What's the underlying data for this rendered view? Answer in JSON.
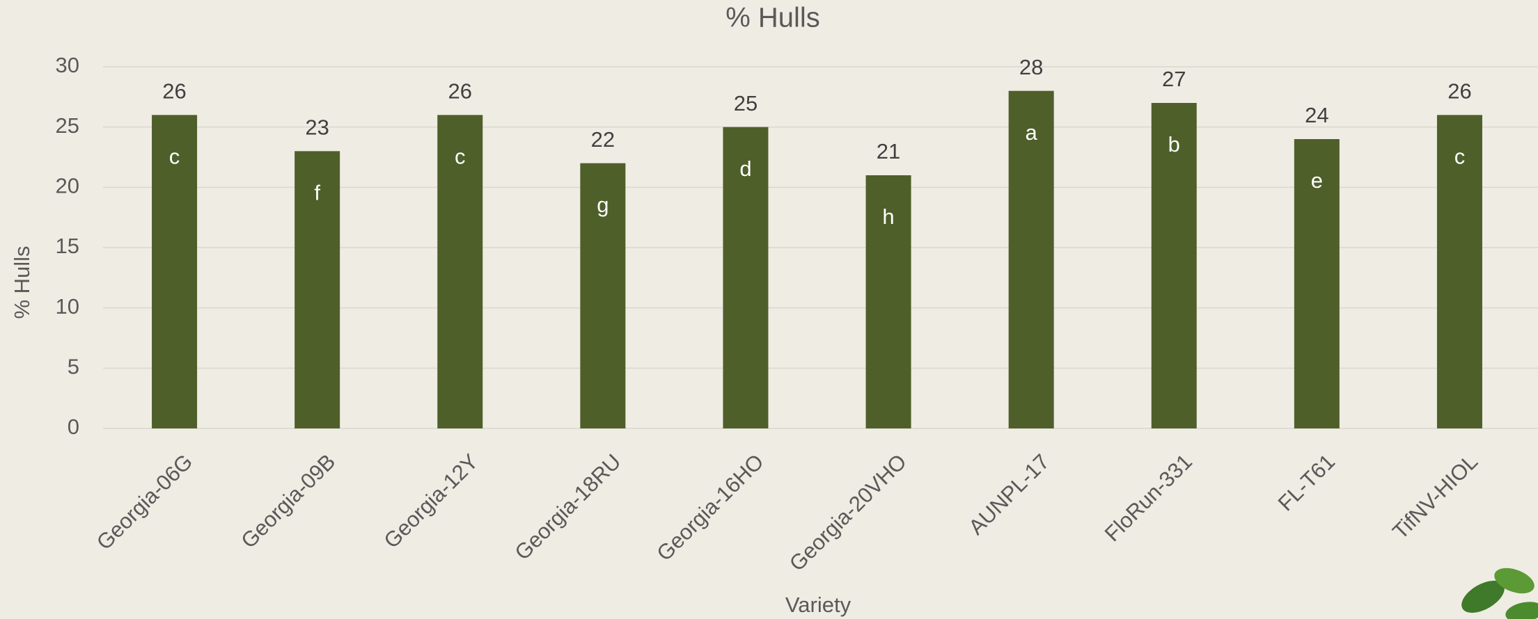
{
  "chart_data": {
    "type": "bar",
    "title": "% Hulls",
    "x_label": "Variety",
    "y_label": "% Hulls",
    "categories": [
      "Georgia-06G",
      "Georgia-09B",
      "Georgia-12Y",
      "Georgia-18RU",
      "Georgia-16HO",
      "Georgia-20VHO",
      "AUNPL-17",
      "FloRun-331",
      "FL-T61",
      "TifNV-HIOL"
    ],
    "values": [
      26,
      23,
      26,
      22,
      25,
      21,
      28,
      27,
      24,
      26
    ],
    "annotations": [
      "c",
      "f",
      "c",
      "g",
      "d",
      "h",
      "a",
      "b",
      "e",
      "c"
    ],
    "color": "#4e5f2a",
    "ylim": [
      0,
      30
    ],
    "yticks": [
      0,
      5,
      10,
      15,
      20,
      25,
      30
    ],
    "grid": true
  }
}
